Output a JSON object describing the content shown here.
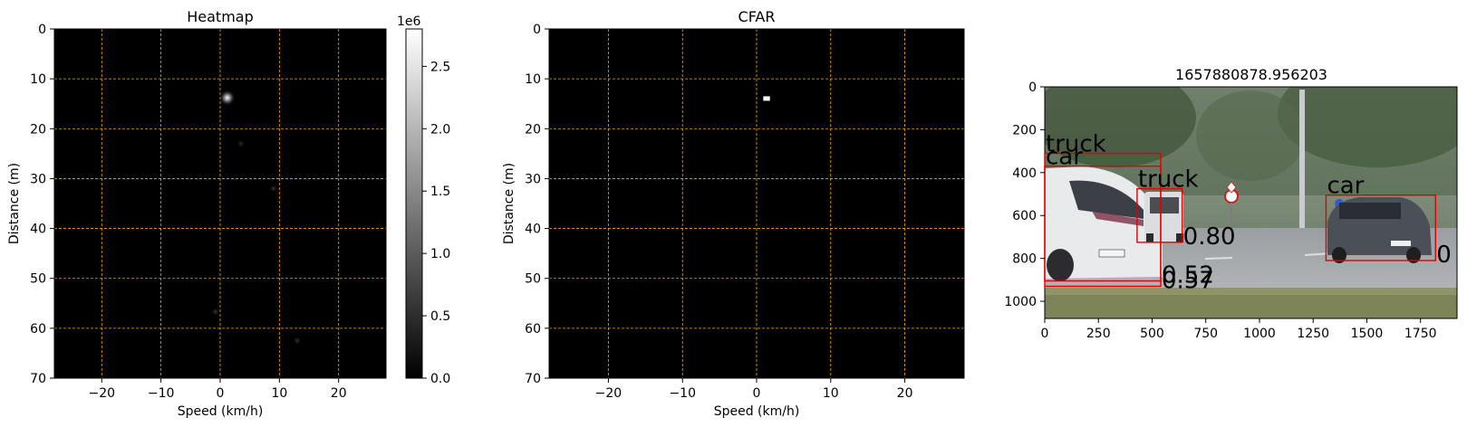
{
  "chart_data": [
    {
      "type": "heatmap",
      "title": "Heatmap",
      "xlabel": "Speed (km/h)",
      "ylabel": "Distance (m)",
      "xlim": [
        -28,
        28
      ],
      "ylim": [
        70,
        0
      ],
      "xticks": [
        "−20",
        "−10",
        "0",
        "10",
        "20"
      ],
      "xtick_values": [
        -20,
        -10,
        0,
        10,
        20
      ],
      "yticks": [
        "0",
        "10",
        "20",
        "30",
        "40",
        "50",
        "60",
        "70"
      ],
      "ytick_values": [
        0,
        10,
        20,
        30,
        40,
        50,
        60,
        70
      ],
      "grid": true,
      "grid_color": "#ffa500",
      "background": "#000000",
      "colormap": "gray",
      "colorbar": {
        "scale_label": "1e6",
        "ticks": [
          "0.0",
          "0.5",
          "1.0",
          "1.5",
          "2.0",
          "2.5"
        ],
        "tick_values": [
          0.0,
          0.5,
          1.0,
          1.5,
          2.0,
          2.5
        ],
        "max": 2.8
      },
      "hotspots": [
        {
          "speed": 1.2,
          "distance": 13.8,
          "value": 2.8
        },
        {
          "speed": 9.0,
          "distance": 32.0,
          "value": 0.3
        },
        {
          "speed": -0.8,
          "distance": 56.7,
          "value": 0.35
        },
        {
          "speed": 13.0,
          "distance": 62.5,
          "value": 0.2
        },
        {
          "speed": 3.5,
          "distance": 23.0,
          "value": 0.1
        }
      ]
    },
    {
      "type": "heatmap",
      "title": "CFAR",
      "xlabel": "Speed (km/h)",
      "ylabel": "Distance (m)",
      "xlim": [
        -28,
        28
      ],
      "ylim": [
        70,
        0
      ],
      "xticks": [
        "−20",
        "−10",
        "0",
        "10",
        "20"
      ],
      "xtick_values": [
        -20,
        -10,
        0,
        10,
        20
      ],
      "yticks": [
        "0",
        "10",
        "20",
        "30",
        "40",
        "50",
        "60",
        "70"
      ],
      "ytick_values": [
        0,
        10,
        20,
        30,
        40,
        50,
        60,
        70
      ],
      "grid": true,
      "grid_color": "#ffa500",
      "background": "#000000",
      "detections": [
        {
          "speed_min": 0.9,
          "speed_max": 1.8,
          "distance_min": 13.5,
          "distance_max": 14.4
        }
      ]
    },
    {
      "type": "image",
      "title": "1657880878.956203",
      "xlim": [
        0,
        1920
      ],
      "ylim": [
        1080,
        0
      ],
      "xticks": [
        "0",
        "250",
        "500",
        "750",
        "1000",
        "1250",
        "1500",
        "1750"
      ],
      "xtick_values": [
        0,
        250,
        500,
        750,
        1000,
        1250,
        1500,
        1750
      ],
      "yticks": [
        "0",
        "200",
        "400",
        "600",
        "800",
        "1000"
      ],
      "ytick_values": [
        0,
        200,
        400,
        600,
        800,
        1000
      ],
      "box_color": "#e00000",
      "detections": [
        {
          "label": "truck",
          "score": "0.57",
          "x1": 0,
          "y1": 310,
          "x2": 540,
          "y2": 930
        },
        {
          "label": "car",
          "score": "0.52",
          "x1": 0,
          "y1": 370,
          "x2": 540,
          "y2": 905
        },
        {
          "label": "truck",
          "score": "0.80",
          "x1": 430,
          "y1": 475,
          "x2": 640,
          "y2": 725
        },
        {
          "label": "car",
          "score": "0",
          "x1": 1310,
          "y1": 505,
          "x2": 1820,
          "y2": 810
        }
      ]
    }
  ]
}
